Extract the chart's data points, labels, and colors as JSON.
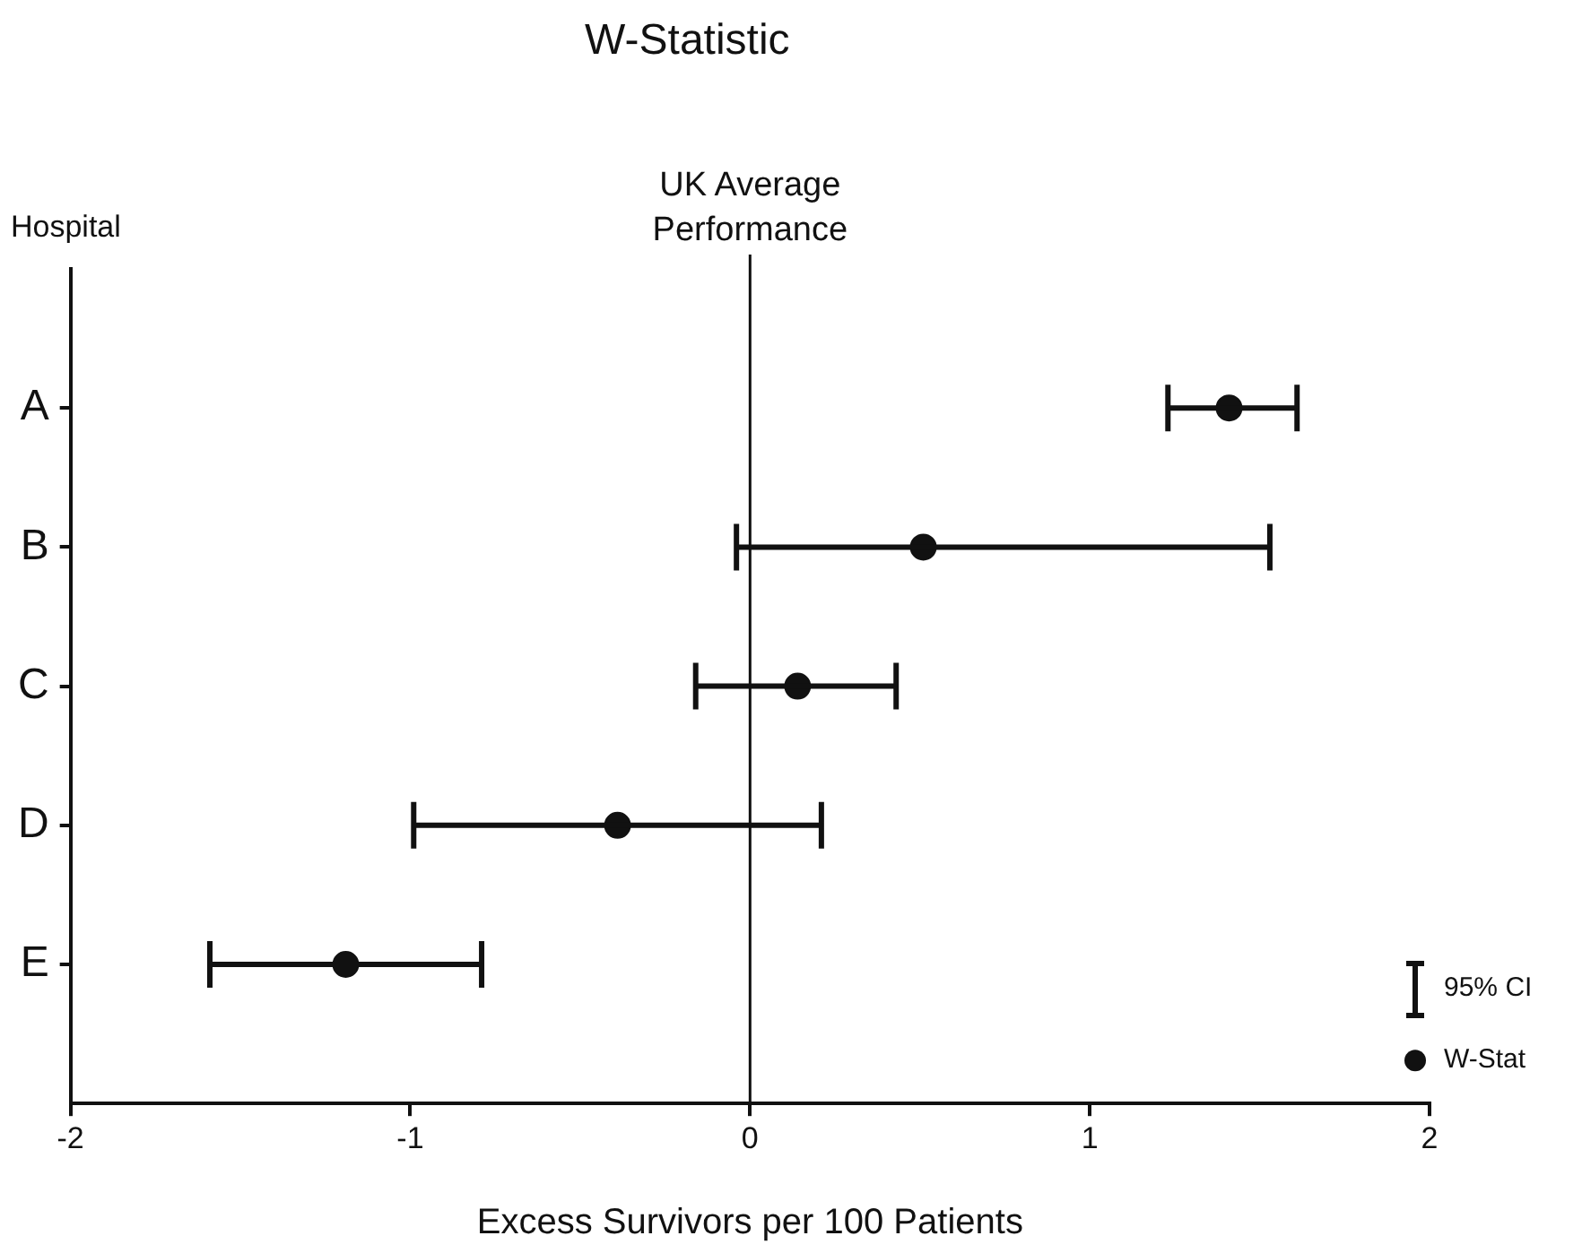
{
  "chart_data": {
    "type": "scatter",
    "title": "W-Statistic",
    "xlabel": "Excess Survivors per 100 Patients",
    "ylabel": "Hospital",
    "categories": [
      "A",
      "B",
      "C",
      "D",
      "E"
    ],
    "orientation": "horizontal",
    "series": [
      {
        "name": "W-Stat",
        "color": "#111111",
        "values": [
          1.41,
          0.51,
          0.14,
          -0.39,
          -1.19
        ],
        "errors": [
          [
            1.23,
            1.61
          ],
          [
            -0.04,
            1.53
          ],
          [
            -0.16,
            0.43
          ],
          [
            -0.99,
            0.21
          ],
          [
            -1.59,
            -0.79
          ]
        ]
      }
    ],
    "xlim": [
      -2,
      2
    ],
    "xticks": [
      -2,
      -1,
      0,
      1,
      2
    ],
    "ref_lines": [
      {
        "axis": "x",
        "value": 0,
        "label": "UK Average Performance"
      }
    ],
    "annotations": [
      "95% CI"
    ],
    "legend": "bottom right",
    "marker": "circle",
    "grid": false
  }
}
